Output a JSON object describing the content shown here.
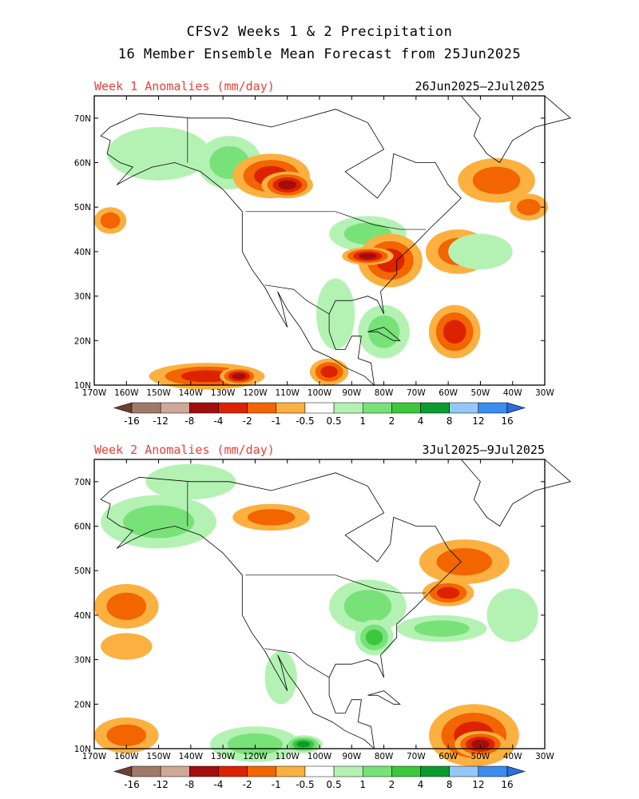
{
  "title_line1": "CFSv2 Weeks 1 & 2 Precipitation",
  "title_line2": "16 Member Ensemble Mean Forecast from 25Jun2025",
  "colors": {
    "frame": "#000000",
    "label_red": "#e8413a",
    "scale": [
      "#6b4030",
      "#a07a68",
      "#d0a898",
      "#a30d0d",
      "#dd2200",
      "#f26500",
      "#fbb040",
      "#ffffff",
      "#b4f2b4",
      "#78e278",
      "#3cc83c",
      "#0b9b2e",
      "#94c8f8",
      "#3c8cf0",
      "#2b6ede"
    ]
  },
  "colorbar": {
    "labels": [
      "-16",
      "-12",
      "-8",
      "-4",
      "-2",
      "-1",
      "-0.5",
      "0.5",
      "1",
      "2",
      "4",
      "8",
      "12",
      "16"
    ]
  },
  "axes": {
    "lon_labels": [
      "170W",
      "160W",
      "150W",
      "140W",
      "130W",
      "120W",
      "110W",
      "100W",
      "90W",
      "80W",
      "70W",
      "60W",
      "50W",
      "40W",
      "30W"
    ],
    "lat_labels": [
      "70N",
      "60N",
      "50N",
      "40N",
      "30N",
      "20N",
      "10N"
    ]
  },
  "panels": [
    {
      "label": "Week 1 Anomalies (mm/day)",
      "dates": "26Jun2025—2Jul2025",
      "blobs": [
        {
          "lon": -150,
          "lat": 62,
          "rx": 16,
          "ry": 6,
          "level": 1
        },
        {
          "lon": -128,
          "lat": 60,
          "rx": 10,
          "ry": 6,
          "level": 2
        },
        {
          "lon": -115,
          "lat": 57,
          "rx": 12,
          "ry": 5,
          "level": -3
        },
        {
          "lon": -110,
          "lat": 55,
          "rx": 8,
          "ry": 3,
          "level": -4
        },
        {
          "lon": -85,
          "lat": 44,
          "rx": 12,
          "ry": 4,
          "level": 2
        },
        {
          "lon": -78,
          "lat": 38,
          "rx": 10,
          "ry": 6,
          "level": -3
        },
        {
          "lon": -85,
          "lat": 39,
          "rx": 8,
          "ry": 2,
          "level": -4
        },
        {
          "lon": -57,
          "lat": 40,
          "rx": 10,
          "ry": 5,
          "level": -2
        },
        {
          "lon": -50,
          "lat": 40,
          "rx": 10,
          "ry": 4,
          "level": 1
        },
        {
          "lon": -95,
          "lat": 26,
          "rx": 6,
          "ry": 8,
          "level": 1
        },
        {
          "lon": -80,
          "lat": 22,
          "rx": 8,
          "ry": 6,
          "level": 2
        },
        {
          "lon": -58,
          "lat": 22,
          "rx": 8,
          "ry": 6,
          "level": -3
        },
        {
          "lon": -135,
          "lat": 12,
          "rx": 18,
          "ry": 3,
          "level": -3
        },
        {
          "lon": -125,
          "lat": 12,
          "rx": 6,
          "ry": 2,
          "level": -4
        },
        {
          "lon": -97,
          "lat": 13,
          "rx": 6,
          "ry": 3,
          "level": -3
        },
        {
          "lon": -35,
          "lat": 50,
          "rx": 6,
          "ry": 3,
          "level": -2
        },
        {
          "lon": -45,
          "lat": 56,
          "rx": 12,
          "ry": 5,
          "level": -2
        },
        {
          "lon": -165,
          "lat": 47,
          "rx": 5,
          "ry": 3,
          "level": -2
        }
      ]
    },
    {
      "label": "Week 2 Anomalies (mm/day)",
      "dates": "3Jul2025—9Jul2025",
      "blobs": [
        {
          "lon": -150,
          "lat": 61,
          "rx": 18,
          "ry": 6,
          "level": 2
        },
        {
          "lon": -140,
          "lat": 70,
          "rx": 14,
          "ry": 4,
          "level": 1
        },
        {
          "lon": -115,
          "lat": 62,
          "rx": 12,
          "ry": 3,
          "level": -2
        },
        {
          "lon": -85,
          "lat": 42,
          "rx": 12,
          "ry": 6,
          "level": 2
        },
        {
          "lon": -83,
          "lat": 35,
          "rx": 6,
          "ry": 4,
          "level": 3
        },
        {
          "lon": -62,
          "lat": 37,
          "rx": 14,
          "ry": 3,
          "level": 2
        },
        {
          "lon": -55,
          "lat": 52,
          "rx": 14,
          "ry": 5,
          "level": -2
        },
        {
          "lon": -60,
          "lat": 45,
          "rx": 8,
          "ry": 3,
          "level": -3
        },
        {
          "lon": -160,
          "lat": 42,
          "rx": 10,
          "ry": 5,
          "level": -2
        },
        {
          "lon": -160,
          "lat": 33,
          "rx": 8,
          "ry": 3,
          "level": -1
        },
        {
          "lon": -120,
          "lat": 11,
          "rx": 14,
          "ry": 4,
          "level": 2
        },
        {
          "lon": -105,
          "lat": 11,
          "rx": 6,
          "ry": 2,
          "level": 4
        },
        {
          "lon": -52,
          "lat": 13,
          "rx": 14,
          "ry": 7,
          "level": -3
        },
        {
          "lon": -50,
          "lat": 11,
          "rx": 8,
          "ry": 3,
          "level": -4
        },
        {
          "lon": -160,
          "lat": 13,
          "rx": 10,
          "ry": 4,
          "level": -2
        },
        {
          "lon": -112,
          "lat": 26,
          "rx": 5,
          "ry": 6,
          "level": 1
        },
        {
          "lon": -40,
          "lat": 40,
          "rx": 8,
          "ry": 6,
          "level": 1
        }
      ]
    }
  ]
}
